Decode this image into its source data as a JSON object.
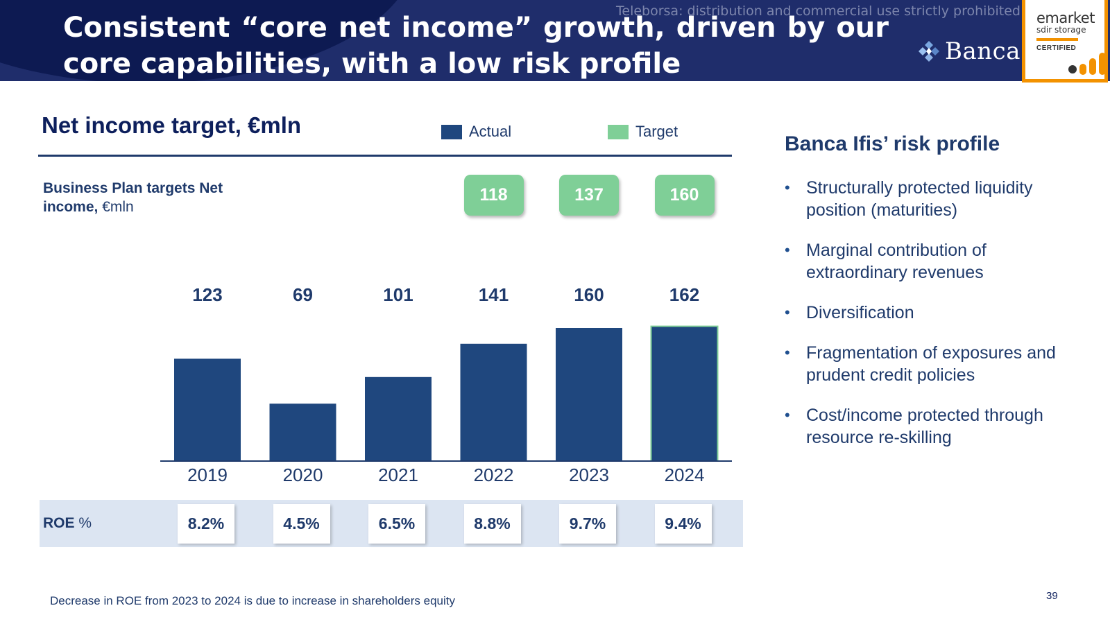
{
  "header": {
    "title": "Consistent “core net income” growth, driven by our core capabilities, with a low risk profile",
    "watermark": "Teleborsa: distribution and commercial use strictly prohibited",
    "brand_name": "Banca",
    "badge": {
      "name": "emarket",
      "sub": "sdir storage",
      "cert": "CERTIFIED",
      "accent": "#f39200"
    }
  },
  "chart_panel": {
    "title": "Net income target, €mln",
    "legend": [
      {
        "label": "Actual",
        "color": "#1f477e"
      },
      {
        "label": "Target",
        "color": "#7fcf97"
      }
    ],
    "bp_label_bold": "Business Plan targets Net income,",
    "bp_label_rest": " €mln",
    "roe_label_bold": "ROE",
    "roe_label_rest": " %"
  },
  "chart_data": {
    "type": "bar",
    "categories": [
      "2019",
      "2020",
      "2021",
      "2022",
      "2023",
      "2024"
    ],
    "series": [
      {
        "name": "Actual",
        "values": [
          123,
          69,
          101,
          141,
          160,
          162
        ],
        "color": "#1f477e"
      }
    ],
    "targets": [
      {
        "category": "2022",
        "value": 118
      },
      {
        "category": "2023",
        "value": 137
      },
      {
        "category": "2024",
        "value": 160
      }
    ],
    "roe": [
      "8.2%",
      "4.5%",
      "6.5%",
      "8.8%",
      "9.7%",
      "9.4%"
    ],
    "ylim": [
      0,
      170
    ],
    "grid": false
  },
  "risk_profile": {
    "title": "Banca Ifis’ risk profile",
    "items": [
      "Structurally protected liquidity position (maturities)",
      "Marginal contribution of extraordinary revenues",
      "Diversification",
      "Fragmentation of exposures and prudent credit policies",
      "Cost/income protected through resource re-skilling"
    ],
    "bullet": "•"
  },
  "footnote": "Decrease in ROE from 2023 to 2024 is due to increase in shareholders equity",
  "page_number": "39"
}
